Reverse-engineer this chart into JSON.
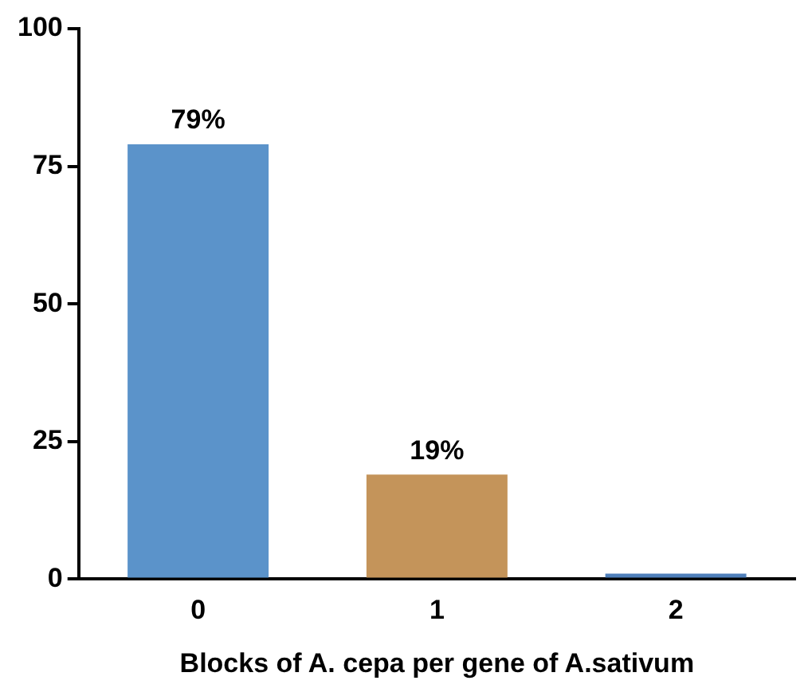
{
  "chart_data": {
    "type": "bar",
    "xlabel": "Blocks of A. cepa per gene of A.sativum",
    "categories": [
      "0",
      "1",
      "2"
    ],
    "values": [
      79,
      19,
      1
    ],
    "colors": [
      "#5b93ca",
      "#c4945a",
      "#4f7fba"
    ],
    "value_labels": [
      "79%",
      "19%",
      null
    ],
    "ylim": [
      0,
      100
    ],
    "yticks": [
      0,
      25,
      50,
      75,
      100
    ],
    "grid": false,
    "legend": false
  }
}
